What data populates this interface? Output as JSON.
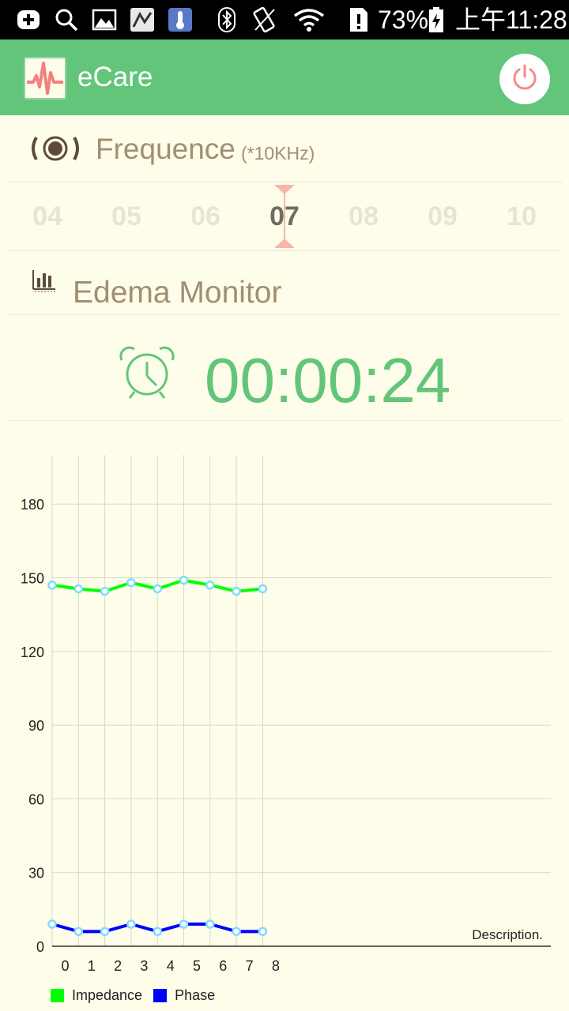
{
  "status_bar": {
    "battery": "73%",
    "time": "上午11:28",
    "icons": [
      "add-icon",
      "search-icon",
      "image-icon",
      "app-icon",
      "thermometer-icon",
      "bluetooth-icon",
      "rotate-icon",
      "wifi-icon",
      "sim-alert-icon",
      "battery-charging-icon"
    ]
  },
  "app_bar": {
    "title": "eCare",
    "logo_icon": "heartbeat-logo-icon",
    "power_icon": "power-icon"
  },
  "frequency": {
    "title": "Frequence",
    "unit": "(*10KHz)",
    "options": [
      "04",
      "05",
      "06",
      "07",
      "08",
      "09",
      "10"
    ],
    "selected": "07"
  },
  "edema": {
    "title": "Edema Monitor",
    "icon": "bar-chart-icon"
  },
  "timer": {
    "value": "00:00:24",
    "icon": "alarm-clock-icon"
  },
  "colors": {
    "accent": "#63c57a",
    "heading": "#a18f72",
    "impedance": "#00ff00",
    "phase": "#0000ff",
    "point": "#7fdcff",
    "power_icon": "#f58a8a",
    "picker_marker": "#f9b5aa"
  },
  "chart_data": {
    "type": "line",
    "description": "Description.",
    "x": [
      0,
      1,
      2,
      3,
      4,
      5,
      6,
      7,
      8
    ],
    "x_ticks": [
      "0",
      "1",
      "2",
      "3",
      "4",
      "5",
      "6",
      "7",
      "8"
    ],
    "y_ticks": [
      "0",
      "30",
      "60",
      "90",
      "120",
      "150",
      "180"
    ],
    "ylim": [
      0,
      200
    ],
    "grid": true,
    "legend_position": "bottom-left",
    "series": [
      {
        "name": "Impedance",
        "values": [
          147,
          145.5,
          144.5,
          148,
          145.5,
          149,
          147,
          144.5,
          145.5
        ]
      },
      {
        "name": "Phase",
        "values": [
          9,
          6,
          6,
          9,
          6,
          9,
          9,
          6,
          6
        ]
      }
    ]
  }
}
